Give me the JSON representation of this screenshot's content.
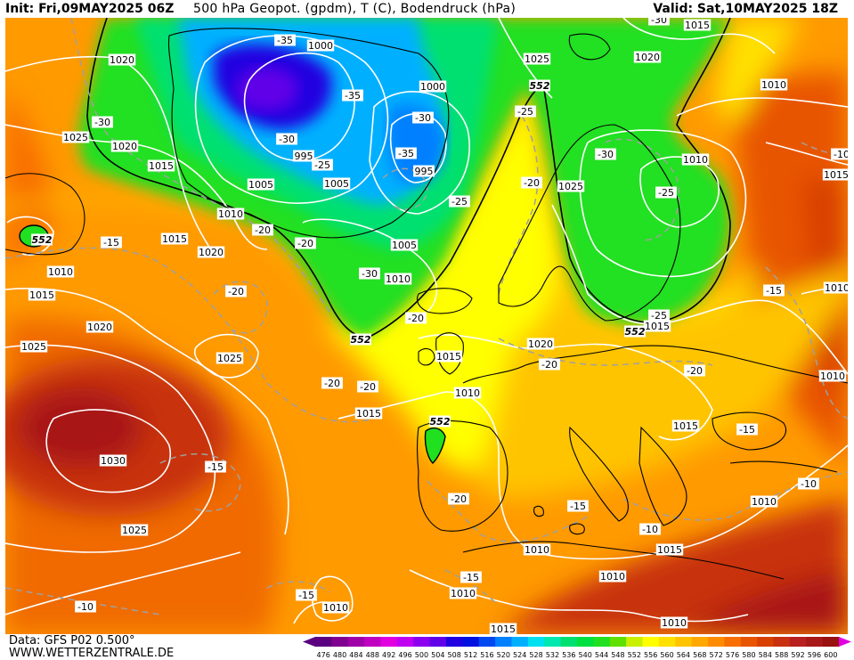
{
  "header": {
    "init": "Init: Fri,09MAY2025 06Z",
    "title": "500 hPa Geopot. (gpdm), T (C), Bodendruck (hPa)",
    "valid": "Valid: Sat,10MAY2025 18Z"
  },
  "footer": {
    "data_source": "Data: GFS P02 0.500°",
    "website": "WWW.WETTERZENTRALE.DE"
  },
  "colors": {
    "background": "#ffffff",
    "isobar": "#ffffff",
    "isotherm": "#a0a0a0",
    "coast": "#000000"
  },
  "legend": {
    "values": [
      "476",
      "480",
      "484",
      "488",
      "492",
      "496",
      "500",
      "504",
      "508",
      "512",
      "516",
      "520",
      "524",
      "528",
      "532",
      "536",
      "540",
      "544",
      "548",
      "552",
      "556",
      "560",
      "564",
      "568",
      "572",
      "576",
      "580",
      "584",
      "588",
      "592",
      "596",
      "600"
    ],
    "colors": [
      "#5a0080",
      "#800090",
      "#a000a8",
      "#c000c0",
      "#e000e0",
      "#c000f0",
      "#8c00f0",
      "#6000e8",
      "#2000e0",
      "#0010e0",
      "#0048f0",
      "#0080ff",
      "#00b0ff",
      "#00e0f0",
      "#00e8b0",
      "#00e070",
      "#00e040",
      "#20e020",
      "#60e000",
      "#c8f000",
      "#ffff00",
      "#ffe000",
      "#ffc400",
      "#ffa800",
      "#ff8c00",
      "#f86e00",
      "#e85400",
      "#d84000",
      "#c83010",
      "#b82020",
      "#a81818",
      "#981010"
    ]
  },
  "map_labels": {
    "isobars": [
      {
        "text": "1020",
        "pos": [
          137,
          67
        ]
      },
      {
        "text": "1025",
        "pos": [
          85,
          154
        ]
      },
      {
        "text": "1020",
        "pos": [
          140,
          164
        ]
      },
      {
        "text": "1015",
        "pos": [
          181,
          186
        ]
      },
      {
        "text": "1010",
        "pos": [
          259,
          240
        ]
      },
      {
        "text": "1015",
        "pos": [
          196,
          268
        ]
      },
      {
        "text": "1020",
        "pos": [
          237,
          283
        ]
      },
      {
        "text": "1010",
        "pos": [
          68,
          305
        ]
      },
      {
        "text": "1015",
        "pos": [
          47,
          331
        ]
      },
      {
        "text": "1020",
        "pos": [
          112,
          367
        ]
      },
      {
        "text": "1025",
        "pos": [
          38,
          389
        ]
      },
      {
        "text": "1025",
        "pos": [
          258,
          402
        ]
      },
      {
        "text": "1030",
        "pos": [
          127,
          517
        ]
      },
      {
        "text": "1025",
        "pos": [
          151,
          595
        ]
      },
      {
        "text": "1000",
        "pos": [
          360,
          51
        ]
      },
      {
        "text": "1000",
        "pos": [
          486,
          97
        ]
      },
      {
        "text": "995",
        "pos": [
          341,
          175
        ]
      },
      {
        "text": "995",
        "pos": [
          476,
          192
        ]
      },
      {
        "text": "1005",
        "pos": [
          293,
          207
        ]
      },
      {
        "text": "1005",
        "pos": [
          378,
          206
        ]
      },
      {
        "text": "1005",
        "pos": [
          454,
          275
        ]
      },
      {
        "text": "1010",
        "pos": [
          447,
          313
        ]
      },
      {
        "text": "1025",
        "pos": [
          603,
          66
        ]
      },
      {
        "text": "1015",
        "pos": [
          783,
          28
        ]
      },
      {
        "text": "1020",
        "pos": [
          727,
          64
        ]
      },
      {
        "text": "1010",
        "pos": [
          869,
          95
        ]
      },
      {
        "text": "1025",
        "pos": [
          641,
          209
        ]
      },
      {
        "text": "1010",
        "pos": [
          781,
          179
        ]
      },
      {
        "text": "1015",
        "pos": [
          939,
          196
        ]
      },
      {
        "text": "1010",
        "pos": [
          940,
          323
        ]
      },
      {
        "text": "1015",
        "pos": [
          738,
          366
        ]
      },
      {
        "text": "1020",
        "pos": [
          607,
          386
        ]
      },
      {
        "text": "1015",
        "pos": [
          504,
          400
        ]
      },
      {
        "text": "1010",
        "pos": [
          525,
          441
        ]
      },
      {
        "text": "1015",
        "pos": [
          414,
          464
        ]
      },
      {
        "text": "1010",
        "pos": [
          935,
          422
        ]
      },
      {
        "text": "1015",
        "pos": [
          770,
          478
        ]
      },
      {
        "text": "1010",
        "pos": [
          858,
          563
        ]
      },
      {
        "text": "1010",
        "pos": [
          603,
          617
        ]
      },
      {
        "text": "1015",
        "pos": [
          752,
          617
        ]
      },
      {
        "text": "1010",
        "pos": [
          688,
          647
        ]
      },
      {
        "text": "1010",
        "pos": [
          520,
          666
        ]
      },
      {
        "text": "1010",
        "pos": [
          377,
          682
        ]
      },
      {
        "text": "1010",
        "pos": [
          757,
          699
        ]
      },
      {
        "text": "1015",
        "pos": [
          565,
          706
        ]
      }
    ],
    "isotherms": [
      {
        "text": "-35",
        "pos": [
          320,
          45
        ]
      },
      {
        "text": "-35",
        "pos": [
          396,
          107
        ]
      },
      {
        "text": "-30",
        "pos": [
          475,
          132
        ]
      },
      {
        "text": "-30",
        "pos": [
          115,
          137
        ]
      },
      {
        "text": "-30",
        "pos": [
          322,
          156
        ]
      },
      {
        "text": "-35",
        "pos": [
          456,
          172
        ]
      },
      {
        "text": "-25",
        "pos": [
          362,
          185
        ]
      },
      {
        "text": "-25",
        "pos": [
          590,
          125
        ]
      },
      {
        "text": "-20",
        "pos": [
          597,
          205
        ]
      },
      {
        "text": "-30",
        "pos": [
          680,
          173
        ]
      },
      {
        "text": "-25",
        "pos": [
          748,
          216
        ]
      },
      {
        "text": "-25",
        "pos": [
          516,
          226
        ]
      },
      {
        "text": "-20",
        "pos": [
          295,
          258
        ]
      },
      {
        "text": "-15",
        "pos": [
          125,
          272
        ]
      },
      {
        "text": "-20",
        "pos": [
          343,
          273
        ]
      },
      {
        "text": "-30",
        "pos": [
          415,
          307
        ]
      },
      {
        "text": "-20",
        "pos": [
          265,
          327
        ]
      },
      {
        "text": "-20",
        "pos": [
          467,
          357
        ]
      },
      {
        "text": "-25",
        "pos": [
          740,
          354
        ]
      },
      {
        "text": "-15",
        "pos": [
          869,
          326
        ]
      },
      {
        "text": "-20",
        "pos": [
          617,
          409
        ]
      },
      {
        "text": "-20",
        "pos": [
          780,
          416
        ]
      },
      {
        "text": "-20",
        "pos": [
          373,
          430
        ]
      },
      {
        "text": "-20",
        "pos": [
          413,
          434
        ]
      },
      {
        "text": "-15",
        "pos": [
          839,
          482
        ]
      },
      {
        "text": "-15",
        "pos": [
          242,
          524
        ]
      },
      {
        "text": "-20",
        "pos": [
          515,
          560
        ]
      },
      {
        "text": "-15",
        "pos": [
          649,
          568
        ]
      },
      {
        "text": "-10",
        "pos": [
          908,
          543
        ]
      },
      {
        "text": "-10",
        "pos": [
          730,
          594
        ]
      },
      {
        "text": "-15",
        "pos": [
          529,
          648
        ]
      },
      {
        "text": "-15",
        "pos": [
          344,
          668
        ]
      },
      {
        "text": "-10",
        "pos": [
          96,
          681
        ]
      },
      {
        "text": "-10",
        "pos": [
          945,
          173
        ]
      },
      {
        "text": "-30",
        "pos": [
          740,
          22
        ]
      }
    ],
    "height_552": [
      {
        "text": "552",
        "pos": [
          606,
          96
        ]
      },
      {
        "text": "552",
        "pos": [
          47,
          269
        ]
      },
      {
        "text": "552",
        "pos": [
          405,
          381
        ]
      },
      {
        "text": "552",
        "pos": [
          713,
          372
        ]
      },
      {
        "text": "552",
        "pos": [
          494,
          473
        ]
      }
    ]
  }
}
